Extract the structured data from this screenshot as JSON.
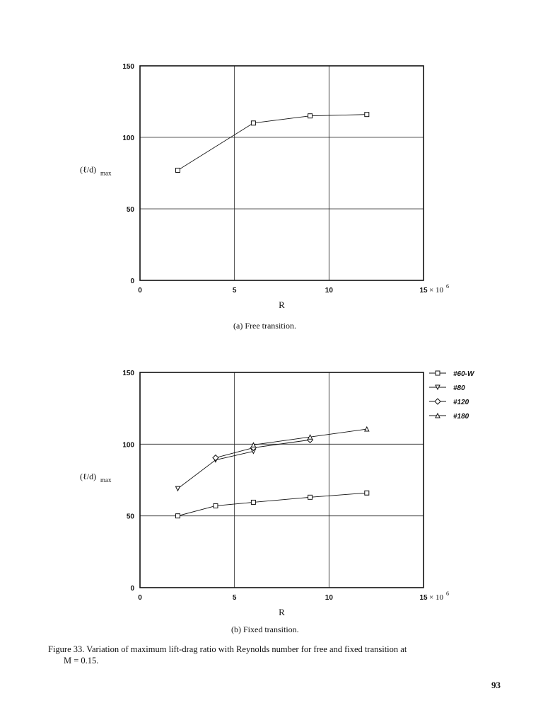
{
  "chart_data": [
    {
      "type": "line",
      "caption": "(a) Free transition.",
      "xlabel": "R",
      "ylabel": "(ℓ/d)",
      "ylabel_sub": "max",
      "xlim": [
        0,
        15
      ],
      "ylim": [
        0,
        150
      ],
      "xticks": [
        "0",
        "5",
        "10",
        "15"
      ],
      "x_multiplier": "× 10",
      "x_multiplier_exp": "6",
      "yticks": [
        "0",
        "50",
        "100",
        "150"
      ],
      "grid": true,
      "series": [
        {
          "name": "",
          "marker": "square",
          "x": [
            2,
            6,
            9,
            12
          ],
          "y": [
            77,
            110,
            115,
            116
          ]
        }
      ]
    },
    {
      "type": "line",
      "caption": "(b) Fixed transition.",
      "xlabel": "R",
      "ylabel": "(ℓ/d)",
      "ylabel_sub": "max",
      "xlim": [
        0,
        15
      ],
      "ylim": [
        0,
        150
      ],
      "xticks": [
        "0",
        "5",
        "10",
        "15"
      ],
      "x_multiplier": "× 10",
      "x_multiplier_exp": "6",
      "yticks": [
        "0",
        "50",
        "100",
        "150"
      ],
      "grid": true,
      "legend_position": "right",
      "series": [
        {
          "name": "#60-W",
          "marker": "square",
          "x": [
            2,
            4,
            6,
            9,
            12
          ],
          "y": [
            50,
            57,
            59.5,
            63,
            66
          ]
        },
        {
          "name": "#80",
          "marker": "triangle-down",
          "x": [
            2,
            4,
            6
          ],
          "y": [
            69,
            89,
            95
          ]
        },
        {
          "name": "#120",
          "marker": "diamond",
          "x": [
            4,
            6,
            9
          ],
          "y": [
            90.5,
            97.5,
            103
          ]
        },
        {
          "name": "#180",
          "marker": "triangle-up",
          "x": [
            6,
            9,
            12
          ],
          "y": [
            99.5,
            105,
            110.5
          ]
        }
      ]
    }
  ],
  "figure_caption": {
    "label": "Figure 33.",
    "text": "Variation of maximum lift-drag ratio with Reynolds number for free and fixed transition at",
    "continuation": "M = 0.15."
  },
  "page_number": "93"
}
